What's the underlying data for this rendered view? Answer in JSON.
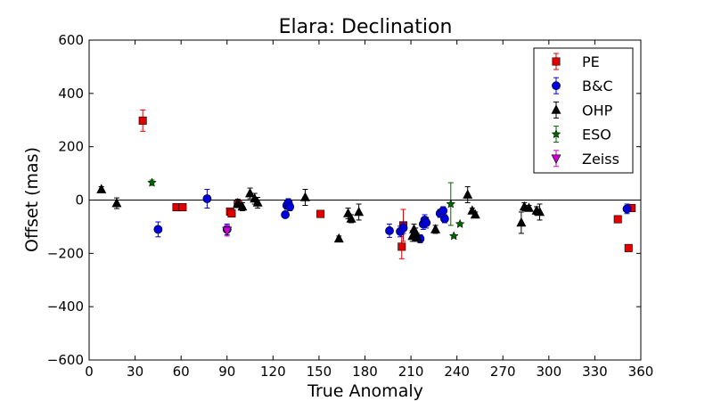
{
  "chart_data": {
    "type": "scatter",
    "title": "Elara: Declination",
    "xlabel": "True Anomaly",
    "ylabel": "Offset (mas)",
    "xlim": [
      0,
      360
    ],
    "ylim": [
      -600,
      600
    ],
    "xticks": [
      0,
      30,
      60,
      90,
      120,
      150,
      180,
      210,
      240,
      270,
      300,
      330,
      360
    ],
    "yticks": [
      -600,
      -400,
      -200,
      0,
      200,
      400,
      600
    ],
    "grid": false,
    "reference_line_y": 0,
    "legend_position": "top-right",
    "series": [
      {
        "name": "PE",
        "marker": "square",
        "color": "#e00000",
        "points": [
          {
            "x": 35,
            "y": 298,
            "err": 40
          },
          {
            "x": 57,
            "y": -27,
            "err": 5
          },
          {
            "x": 61,
            "y": -27,
            "err": 5
          },
          {
            "x": 92,
            "y": -43,
            "err": 8
          },
          {
            "x": 93,
            "y": -50,
            "err": 8
          },
          {
            "x": 97,
            "y": -15,
            "err": 8
          },
          {
            "x": 151,
            "y": -52,
            "err": 5
          },
          {
            "x": 204,
            "y": -175,
            "err": 45
          },
          {
            "x": 205,
            "y": -95,
            "err": 60
          },
          {
            "x": 345,
            "y": -72,
            "err": 5
          },
          {
            "x": 352,
            "y": -180,
            "err": 5
          },
          {
            "x": 354,
            "y": -30,
            "err": 5
          }
        ]
      },
      {
        "name": "B&C",
        "marker": "circle",
        "color": "#0000dd",
        "points": [
          {
            "x": 45,
            "y": -110,
            "err": 28
          },
          {
            "x": 77,
            "y": 5,
            "err": 35
          },
          {
            "x": 90,
            "y": -110,
            "err": 20
          },
          {
            "x": 128,
            "y": -55,
            "err": 12
          },
          {
            "x": 129,
            "y": -20,
            "err": 15
          },
          {
            "x": 130,
            "y": -10,
            "err": 15
          },
          {
            "x": 131,
            "y": -25,
            "err": 15
          },
          {
            "x": 196,
            "y": -115,
            "err": 25
          },
          {
            "x": 203,
            "y": -118,
            "err": 20
          },
          {
            "x": 205,
            "y": -105,
            "err": 20
          },
          {
            "x": 216,
            "y": -145,
            "err": 15
          },
          {
            "x": 218,
            "y": -90,
            "err": 20
          },
          {
            "x": 219,
            "y": -75,
            "err": 20
          },
          {
            "x": 220,
            "y": -85,
            "err": 20
          },
          {
            "x": 229,
            "y": -50,
            "err": 15
          },
          {
            "x": 231,
            "y": -40,
            "err": 15
          },
          {
            "x": 232,
            "y": -70,
            "err": 15
          },
          {
            "x": 351,
            "y": -33,
            "err": 18
          }
        ]
      },
      {
        "name": "OHP",
        "marker": "triangle-up",
        "color": "#000000",
        "points": [
          {
            "x": 8,
            "y": 40,
            "err": 10
          },
          {
            "x": 18,
            "y": -12,
            "err": 20
          },
          {
            "x": 97,
            "y": -12,
            "err": 15
          },
          {
            "x": 100,
            "y": -25,
            "err": 15
          },
          {
            "x": 105,
            "y": 25,
            "err": 20
          },
          {
            "x": 108,
            "y": 5,
            "err": 20
          },
          {
            "x": 110,
            "y": -10,
            "err": 20
          },
          {
            "x": 141,
            "y": 10,
            "err": 30
          },
          {
            "x": 163,
            "y": -145,
            "err": 10
          },
          {
            "x": 169,
            "y": -50,
            "err": 20
          },
          {
            "x": 171,
            "y": -70,
            "err": 15
          },
          {
            "x": 176,
            "y": -45,
            "err": 30
          },
          {
            "x": 211,
            "y": -135,
            "err": 20
          },
          {
            "x": 212,
            "y": -110,
            "err": 20
          },
          {
            "x": 213,
            "y": -125,
            "err": 20
          },
          {
            "x": 214,
            "y": -140,
            "err": 15
          },
          {
            "x": 226,
            "y": -110,
            "err": 15
          },
          {
            "x": 247,
            "y": 20,
            "err": 30
          },
          {
            "x": 250,
            "y": -40,
            "err": 10
          },
          {
            "x": 252,
            "y": -55,
            "err": 10
          },
          {
            "x": 282,
            "y": -85,
            "err": 40
          },
          {
            "x": 284,
            "y": -25,
            "err": 15
          },
          {
            "x": 287,
            "y": -30,
            "err": 10
          },
          {
            "x": 292,
            "y": -40,
            "err": 15
          },
          {
            "x": 294,
            "y": -45,
            "err": 30
          }
        ]
      },
      {
        "name": "ESO",
        "marker": "star",
        "color": "#006400",
        "points": [
          {
            "x": 41,
            "y": 65,
            "err": 10
          },
          {
            "x": 236,
            "y": -15,
            "err": 80
          },
          {
            "x": 238,
            "y": -135,
            "err": 5
          },
          {
            "x": 242,
            "y": -90,
            "err": 5
          }
        ]
      },
      {
        "name": "Zeiss",
        "marker": "triangle-down",
        "color": "#cc00cc",
        "points": [
          {
            "x": 90,
            "y": -115,
            "err": 20
          }
        ]
      }
    ]
  }
}
